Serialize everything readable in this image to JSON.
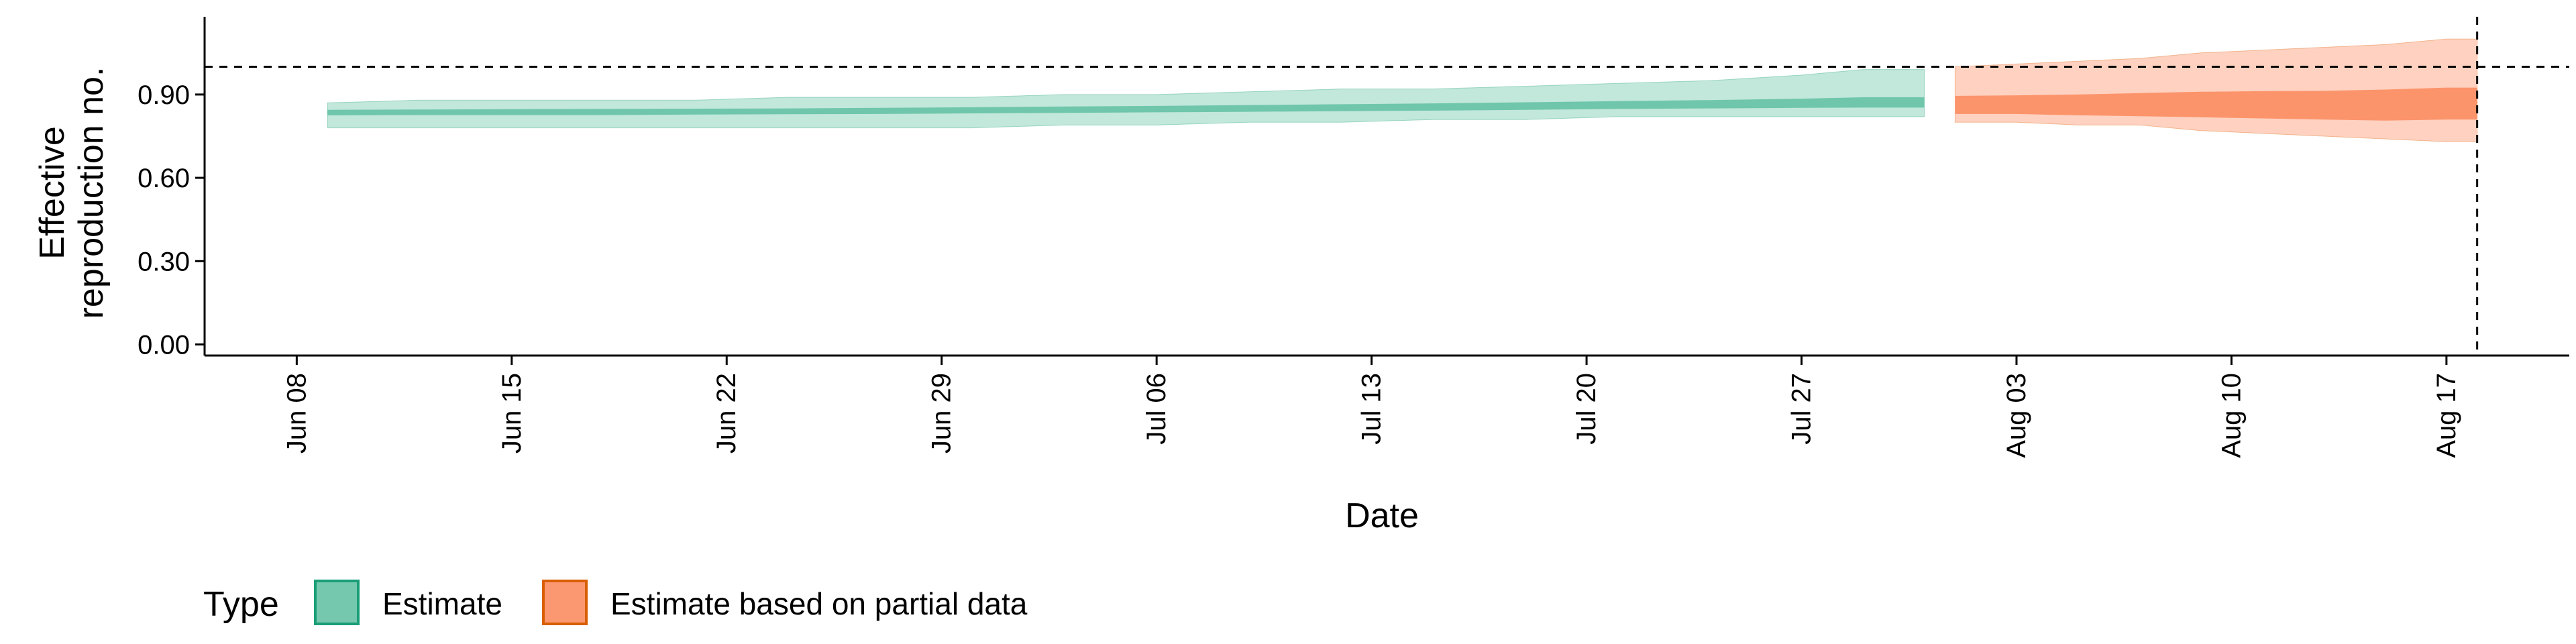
{
  "chart_data": {
    "type": "area",
    "xlabel": "Date",
    "ylabel_lines": [
      "Effective",
      "reproduction no."
    ],
    "ylim": [
      -0.04,
      1.18
    ],
    "yticks": [
      0.0,
      0.3,
      0.6,
      0.9
    ],
    "ytick_labels": [
      "0.00",
      "0.30",
      "0.60",
      "0.90"
    ],
    "xlim": [
      "2020-06-05",
      "2020-08-21"
    ],
    "xticks": [
      "2020-06-08",
      "2020-06-15",
      "2020-06-22",
      "2020-06-29",
      "2020-07-06",
      "2020-07-13",
      "2020-07-20",
      "2020-07-27",
      "2020-08-03",
      "2020-08-10",
      "2020-08-17"
    ],
    "xtick_labels": [
      "Jun 08",
      "Jun 15",
      "Jun 22",
      "Jun 29",
      "Jul 06",
      "Jul 13",
      "Jul 20",
      "Jul 27",
      "Aug 03",
      "Aug 10",
      "Aug 17"
    ],
    "reference_lines": {
      "horizontal_y": 1.0,
      "vertical_x": "2020-08-18"
    },
    "grid": false,
    "legend": {
      "title": "Type",
      "placement": "bottom-left",
      "entries": [
        "Estimate",
        "Estimate based on partial data"
      ]
    },
    "series": [
      {
        "name": "Estimate",
        "fill_color": "#66C2A5",
        "border_color": "#1B9E77",
        "x": [
          "2020-06-09",
          "2020-06-12",
          "2020-06-15",
          "2020-06-18",
          "2020-06-21",
          "2020-06-24",
          "2020-06-27",
          "2020-06-30",
          "2020-07-03",
          "2020-07-06",
          "2020-07-09",
          "2020-07-12",
          "2020-07-15",
          "2020-07-18",
          "2020-07-21",
          "2020-07-24",
          "2020-07-27",
          "2020-07-29",
          "2020-07-31"
        ],
        "lower_90": [
          0.78,
          0.78,
          0.78,
          0.78,
          0.78,
          0.78,
          0.78,
          0.78,
          0.79,
          0.79,
          0.8,
          0.8,
          0.81,
          0.81,
          0.82,
          0.82,
          0.82,
          0.82,
          0.82
        ],
        "upper_90": [
          0.87,
          0.88,
          0.88,
          0.88,
          0.88,
          0.89,
          0.89,
          0.89,
          0.9,
          0.9,
          0.91,
          0.92,
          0.92,
          0.93,
          0.94,
          0.95,
          0.97,
          0.99,
          0.99
        ],
        "lower_50": [
          0.825,
          0.826,
          0.826,
          0.826,
          0.828,
          0.829,
          0.83,
          0.832,
          0.834,
          0.836,
          0.838,
          0.84,
          0.842,
          0.845,
          0.848,
          0.85,
          0.852,
          0.853,
          0.853
        ],
        "upper_50": [
          0.845,
          0.846,
          0.847,
          0.848,
          0.849,
          0.85,
          0.852,
          0.854,
          0.857,
          0.859,
          0.862,
          0.865,
          0.868,
          0.872,
          0.876,
          0.88,
          0.885,
          0.89,
          0.89
        ]
      },
      {
        "name": "Estimate based on partial data",
        "fill_color": "#FC8D62",
        "border_color": "#D95F02",
        "x": [
          "2020-08-01",
          "2020-08-03",
          "2020-08-05",
          "2020-08-07",
          "2020-08-09",
          "2020-08-11",
          "2020-08-13",
          "2020-08-15",
          "2020-08-17",
          "2020-08-18"
        ],
        "lower_90": [
          0.8,
          0.8,
          0.79,
          0.79,
          0.77,
          0.76,
          0.75,
          0.74,
          0.73,
          0.73
        ],
        "upper_90": [
          1.0,
          1.01,
          1.02,
          1.03,
          1.05,
          1.06,
          1.07,
          1.08,
          1.1,
          1.1
        ],
        "lower_50": [
          0.83,
          0.83,
          0.825,
          0.822,
          0.818,
          0.814,
          0.81,
          0.806,
          0.81,
          0.81
        ],
        "upper_50": [
          0.895,
          0.897,
          0.9,
          0.905,
          0.91,
          0.912,
          0.913,
          0.918,
          0.925,
          0.925
        ]
      }
    ]
  }
}
